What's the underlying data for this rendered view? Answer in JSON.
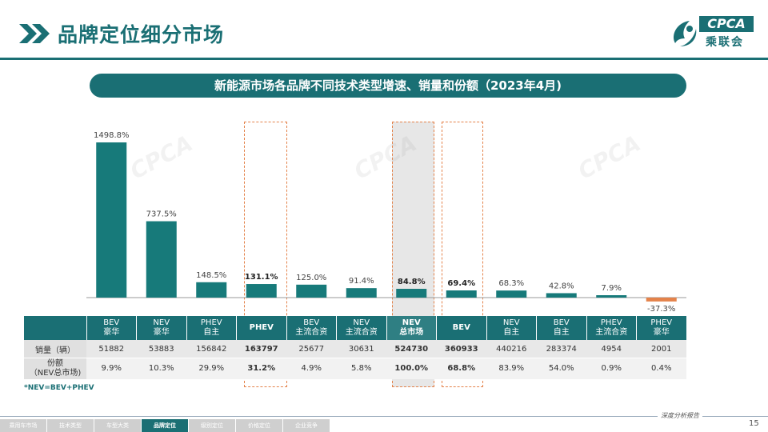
{
  "header": {
    "title": "品牌定位细分市场",
    "logo_text": "CPCA",
    "logo_sub": "乘联会"
  },
  "banner": "新能源市场各品牌不同技术类型增速、销量和份额（2023年4月)",
  "chart_data": {
    "type": "bar",
    "title": "新能源市场各品牌不同技术类型增速、销量和份额（2023年4月)",
    "categories": [
      "BEV 豪华",
      "NEV 豪华",
      "PHEV 自主",
      "PHEV",
      "BEV 主流合资",
      "NEV 主流合资",
      "NEV 总市场",
      "BEV",
      "NEV 自主",
      "BEV 自主",
      "PHEV 主流合资",
      "PHEV 豪华"
    ],
    "series": [
      {
        "name": "增速",
        "values": [
          1498.8,
          737.5,
          148.5,
          131.1,
          125.0,
          91.4,
          84.8,
          69.4,
          68.3,
          42.8,
          7.9,
          -37.3
        ]
      }
    ],
    "data_labels": [
      "1498.8%",
      "737.5%",
      "148.5%",
      "131.1%",
      "125.0%",
      "91.4%",
      "84.8%",
      "69.4%",
      "68.3%",
      "42.8%",
      "7.9%",
      "-37.3%"
    ],
    "bold_indices": [
      3,
      6,
      7
    ],
    "ylim": [
      -60,
      1650
    ],
    "colors": {
      "positive": "#177a7a",
      "negative": "#e4824a"
    }
  },
  "table": {
    "headers": [
      {
        "line1": "BEV",
        "line2": "豪华"
      },
      {
        "line1": "NEV",
        "line2": "豪华"
      },
      {
        "line1": "PHEV",
        "line2": "自主"
      },
      {
        "line1": "PHEV",
        "line2": ""
      },
      {
        "line1": "BEV",
        "line2": "主流合资"
      },
      {
        "line1": "NEV",
        "line2": "主流合资"
      },
      {
        "line1": "NEV",
        "line2": "总市场"
      },
      {
        "line1": "BEV",
        "line2": ""
      },
      {
        "line1": "NEV",
        "line2": "自主"
      },
      {
        "line1": "BEV",
        "line2": "自主"
      },
      {
        "line1": "PHEV",
        "line2": "主流合资"
      },
      {
        "line1": "PHEV",
        "line2": "豪华"
      }
    ],
    "rows": [
      {
        "label_line1": "销量（辆）",
        "label_line2": "",
        "values": [
          "51882",
          "53883",
          "156842",
          "163797",
          "25677",
          "30631",
          "524730",
          "360933",
          "440216",
          "283374",
          "4954",
          "2001"
        ]
      },
      {
        "label_line1": "份额",
        "label_line2": "（NEV总市场)",
        "values": [
          "9.9%",
          "10.3%",
          "29.9%",
          "31.2%",
          "4.9%",
          "5.8%",
          "100.0%",
          "68.8%",
          "83.9%",
          "54.0%",
          "0.9%",
          "0.4%"
        ]
      }
    ],
    "bold_columns": [
      3,
      6,
      7
    ]
  },
  "footnote": "*NEV=BEV+PHEV",
  "footer": {
    "report_name": "深度分析报告",
    "page_number": "15",
    "nav": [
      "乘用车市场",
      "技术类型",
      "车型大类",
      "品牌定位",
      "级别定位",
      "价格定位",
      "企业竞争"
    ],
    "active_nav": 3
  },
  "colors": {
    "brand": "#1a6f74",
    "accent": "#e4824a"
  }
}
